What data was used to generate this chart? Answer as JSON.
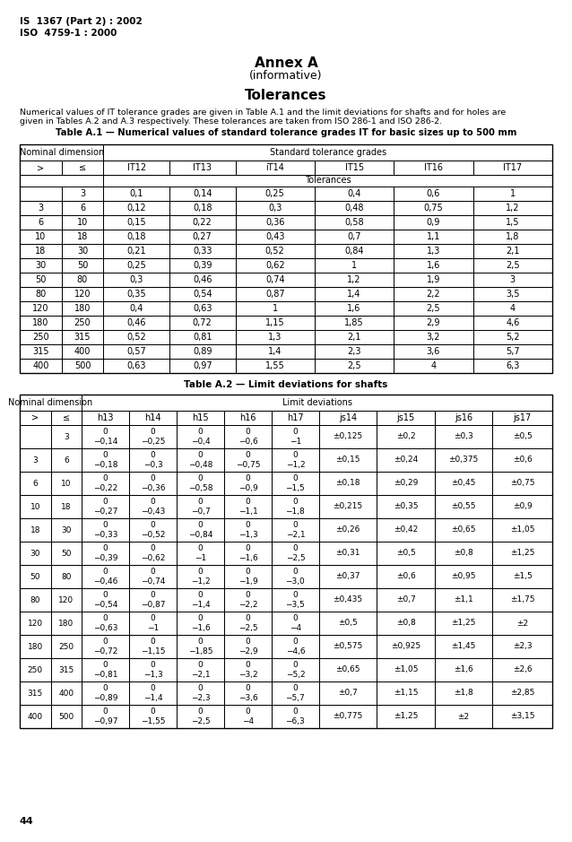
{
  "header_line1": "IS  1367 (Part 2) : 2002",
  "header_line2": "ISO  4759-1 : 2000",
  "title1": "Annex A",
  "title2": "(informative)",
  "title3": "Tolerances",
  "intro_text": "Numerical values of IT tolerance grades are given in Table A.1 and the limit deviations for shafts and for holes are\ngiven in Tables A.2 and A.3 respectively. These tolerances are taken from ISO 286-1 and ISO 286-2.",
  "table1_title": "Table A.1 — Numerical values of standard tolerance grades IT for basic sizes up to 500 mm",
  "table1_sub_headers": [
    ">",
    "≤",
    "IT12",
    "IT13",
    "iT14",
    "IT15",
    "IT16",
    "IT17"
  ],
  "table1_data": [
    [
      "",
      "3",
      "0,1",
      "0,14",
      "0,25",
      "0,4",
      "0,6",
      "1"
    ],
    [
      "3",
      "6",
      "0,12",
      "0,18",
      "0,3",
      "0,48",
      "0,75",
      "1,2"
    ],
    [
      "6",
      "10",
      "0,15",
      "0,22",
      "0,36",
      "0,58",
      "0,9",
      "1,5"
    ],
    [
      "10",
      "18",
      "0,18",
      "0,27",
      "0,43",
      "0,7",
      "1,1",
      "1,8"
    ],
    [
      "18",
      "30",
      "0,21",
      "0,33",
      "0,52",
      "0,84",
      "1,3",
      "2,1"
    ],
    [
      "30",
      "50",
      "0,25",
      "0,39",
      "0,62",
      "1",
      "1,6",
      "2,5"
    ],
    [
      "50",
      "80",
      "0,3",
      "0,46",
      "0,74",
      "1,2",
      "1,9",
      "3"
    ],
    [
      "80",
      "120",
      "0,35",
      "0,54",
      "0,87",
      "1,4",
      "2,2",
      "3,5"
    ],
    [
      "120",
      "180",
      "0,4",
      "0,63",
      "1",
      "1,6",
      "2,5",
      "4"
    ],
    [
      "180",
      "250",
      "0,46",
      "0,72",
      "1,15",
      "1,85",
      "2,9",
      "4,6"
    ],
    [
      "250",
      "315",
      "0,52",
      "0,81",
      "1,3",
      "2,1",
      "3,2",
      "5,2"
    ],
    [
      "315",
      "400",
      "0,57",
      "0,89",
      "1,4",
      "2,3",
      "3,6",
      "5,7"
    ],
    [
      "400",
      "500",
      "0,63",
      "0,97",
      "1,55",
      "2,5",
      "4",
      "6,3"
    ]
  ],
  "table2_title": "Table A.2 — Limit deviations for shafts",
  "table2_sub_headers": [
    ">",
    "≤",
    "h13",
    "h14",
    "h15",
    "h16",
    "h17",
    "js14",
    "js15",
    "js16",
    "js17"
  ],
  "table2_data": [
    [
      "",
      "3",
      "0\n−0,14",
      "0\n−0,25",
      "0\n−0,4",
      "0\n−0,6",
      "0\n−1",
      "±0,125",
      "±0,2",
      "±0,3",
      "±0,5"
    ],
    [
      "3",
      "6",
      "0\n−0,18",
      "0\n−0,3",
      "0\n−0,48",
      "0\n−0,75",
      "0\n−1,2",
      "±0,15",
      "±0,24",
      "±0,375",
      "±0,6"
    ],
    [
      "6",
      "10",
      "0\n−0,22",
      "0\n−0,36",
      "0\n−0,58",
      "0\n−0,9",
      "0\n−1,5",
      "±0,18",
      "±0,29",
      "±0,45",
      "±0,75"
    ],
    [
      "10",
      "18",
      "0\n−0,27",
      "0\n−0,43",
      "0\n−0,7",
      "0\n−1,1",
      "0\n−1,8",
      "±0,215",
      "±0,35",
      "±0,55",
      "±0,9"
    ],
    [
      "18",
      "30",
      "0\n−0,33",
      "0\n−0,52",
      "0\n−0,84",
      "0\n−1,3",
      "0\n−2,1",
      "±0,26",
      "±0,42",
      "±0,65",
      "±1,05"
    ],
    [
      "30",
      "50",
      "0\n−0,39",
      "0\n−0,62",
      "0\n−1",
      "0\n−1,6",
      "0\n−2,5",
      "±0,31",
      "±0,5",
      "±0,8",
      "±1,25"
    ],
    [
      "50",
      "80",
      "0\n−0,46",
      "0\n−0,74",
      "0\n−1,2",
      "0\n−1,9",
      "0\n−3,0",
      "±0,37",
      "±0,6",
      "±0,95",
      "±1,5"
    ],
    [
      "80",
      "120",
      "0\n−0,54",
      "0\n−0,87",
      "0\n−1,4",
      "0\n−2,2",
      "0\n−3,5",
      "±0,435",
      "±0,7",
      "±1,1",
      "±1,75"
    ],
    [
      "120",
      "180",
      "0\n−0,63",
      "0\n−1",
      "0\n−1,6",
      "0\n−2,5",
      "0\n−4",
      "±0,5",
      "±0,8",
      "±1,25",
      "±2"
    ],
    [
      "180",
      "250",
      "0\n−0,72",
      "0\n−1,15",
      "0\n−1,85",
      "0\n−2,9",
      "0\n−4,6",
      "±0,575",
      "±0,925",
      "±1,45",
      "±2,3"
    ],
    [
      "250",
      "315",
      "0\n−0,81",
      "0\n−1,3",
      "0\n−2,1",
      "0\n−3,2",
      "0\n−5,2",
      "±0,65",
      "±1,05",
      "±1,6",
      "±2,6"
    ],
    [
      "315",
      "400",
      "0\n−0,89",
      "0\n−1,4",
      "0\n−2,3",
      "0\n−3,6",
      "0\n−5,7",
      "±0,7",
      "±1,15",
      "±1,8",
      "±2,85"
    ],
    [
      "400",
      "500",
      "0\n−0,97",
      "0\n−1,55",
      "0\n−2,5",
      "0\n−4",
      "0\n−6,3",
      "±0,775",
      "±1,25",
      "±2",
      "±3,15"
    ]
  ],
  "page_number": "44",
  "bg_color": "#ffffff"
}
